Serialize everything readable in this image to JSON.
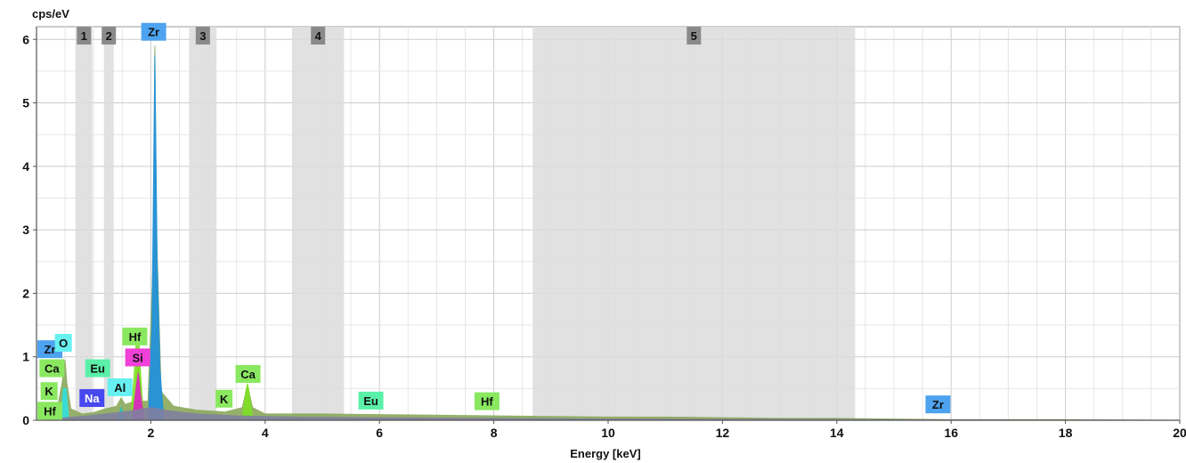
{
  "chart_data": {
    "type": "area",
    "ylabel": "cps/eV",
    "xlabel": "Energy [keV]",
    "xlim": [
      0,
      20
    ],
    "ylim": [
      0,
      6.2
    ],
    "x_ticks": [
      2,
      4,
      6,
      8,
      10,
      12,
      14,
      16,
      18,
      20
    ],
    "x_tick_labels": [
      "2",
      "4",
      "6",
      "8",
      "10",
      "12",
      "14",
      "16",
      "18",
      "20"
    ],
    "y_ticks": [
      0,
      1,
      2,
      3,
      4,
      5,
      6
    ],
    "y_tick_labels": [
      "0",
      "1",
      "2",
      "3",
      "4",
      "5",
      "6"
    ],
    "grid": true,
    "regions": [
      {
        "label": "1",
        "from": 0.68,
        "to": 0.98
      },
      {
        "label": "2",
        "from": 1.18,
        "to": 1.35
      },
      {
        "label": "3",
        "from": 2.67,
        "to": 3.15
      },
      {
        "label": "4",
        "from": 4.47,
        "to": 5.38
      },
      {
        "label": "5",
        "from": 8.68,
        "to": 14.32
      }
    ],
    "series": [
      {
        "color": "#8aa85a",
        "points": [
          [
            0.1,
            0.04
          ],
          [
            0.35,
            0.12
          ],
          [
            0.45,
            0.6
          ],
          [
            0.5,
            0.95
          ],
          [
            0.53,
            0.6
          ],
          [
            0.6,
            0.18
          ],
          [
            0.8,
            0.1
          ],
          [
            1.0,
            0.12
          ],
          [
            1.2,
            0.18
          ],
          [
            1.4,
            0.22
          ],
          [
            1.48,
            0.35
          ],
          [
            1.55,
            0.25
          ],
          [
            1.72,
            0.3
          ],
          [
            1.78,
            1.05
          ],
          [
            1.84,
            0.3
          ],
          [
            1.95,
            0.3
          ],
          [
            2.04,
            2.5
          ],
          [
            2.07,
            5.9
          ],
          [
            2.1,
            3.0
          ],
          [
            2.18,
            0.45
          ],
          [
            2.4,
            0.22
          ],
          [
            2.8,
            0.16
          ],
          [
            3.3,
            0.13
          ],
          [
            3.6,
            0.2
          ],
          [
            3.69,
            0.55
          ],
          [
            3.78,
            0.2
          ],
          [
            4.0,
            0.1
          ],
          [
            5.0,
            0.1
          ],
          [
            6.0,
            0.09
          ],
          [
            7.0,
            0.08
          ],
          [
            8.0,
            0.07
          ],
          [
            9.0,
            0.06
          ],
          [
            10.0,
            0.05
          ],
          [
            11.0,
            0.05
          ],
          [
            12.0,
            0.04
          ],
          [
            13.0,
            0.03
          ],
          [
            14.0,
            0.03
          ],
          [
            15.0,
            0.02
          ],
          [
            16.0,
            0.01
          ],
          [
            18.0,
            0.01
          ],
          [
            20.0,
            0.0
          ]
        ]
      },
      {
        "color": "#1e90e0",
        "points": [
          [
            1.96,
            0.1
          ],
          [
            2.02,
            1.5
          ],
          [
            2.07,
            5.75
          ],
          [
            2.11,
            2.5
          ],
          [
            2.16,
            0.8
          ],
          [
            2.22,
            0.1
          ]
        ]
      },
      {
        "color": "#7fe024",
        "points": [
          [
            1.66,
            0.2
          ],
          [
            1.7,
            0.6
          ],
          [
            1.74,
            1.2
          ],
          [
            1.78,
            1.45
          ],
          [
            1.82,
            0.8
          ],
          [
            1.86,
            0.2
          ]
        ]
      },
      {
        "color": "#e020c8",
        "points": [
          [
            1.68,
            0.05
          ],
          [
            1.74,
            0.5
          ],
          [
            1.78,
            0.75
          ],
          [
            1.82,
            0.4
          ],
          [
            1.88,
            0.05
          ]
        ]
      },
      {
        "color": "#30e0e0",
        "points": [
          [
            0.42,
            0.05
          ],
          [
            0.47,
            0.5
          ],
          [
            0.52,
            0.5
          ],
          [
            0.56,
            0.05
          ]
        ]
      },
      {
        "color": "#20c8c8",
        "points": [
          [
            1.42,
            0.02
          ],
          [
            1.48,
            0.2
          ],
          [
            1.54,
            0.02
          ]
        ]
      },
      {
        "color": "#7fe024",
        "points": [
          [
            3.6,
            0.05
          ],
          [
            3.66,
            0.45
          ],
          [
            3.69,
            0.58
          ],
          [
            3.72,
            0.45
          ],
          [
            3.78,
            0.05
          ]
        ]
      },
      {
        "color": "#8080a0",
        "points": [
          [
            0.2,
            0.02
          ],
          [
            0.8,
            0.06
          ],
          [
            1.2,
            0.1
          ],
          [
            1.6,
            0.14
          ],
          [
            2.0,
            0.2
          ],
          [
            2.3,
            0.15
          ],
          [
            2.8,
            0.1
          ],
          [
            3.5,
            0.07
          ],
          [
            4.5,
            0.05
          ],
          [
            6.0,
            0.04
          ],
          [
            8.0,
            0.03
          ],
          [
            10.0,
            0.02
          ],
          [
            14.0,
            0.01
          ],
          [
            20.0,
            0.0
          ]
        ]
      }
    ],
    "element_labels": [
      {
        "text": "Zr",
        "x": 2.05,
        "y": 6.12,
        "color": "#4da3f0"
      },
      {
        "text": "Zr",
        "x": 0.16,
        "y": 1.12,
        "color": "#4da3f0"
      },
      {
        "text": "O",
        "x": 0.47,
        "y": 1.22,
        "color": "#66f0f0"
      },
      {
        "text": "Ca",
        "x": 0.27,
        "y": 0.82,
        "color": "#8ae860"
      },
      {
        "text": "K",
        "x": 0.22,
        "y": 0.46,
        "color": "#8ae860"
      },
      {
        "text": "Hf",
        "x": 0.2,
        "y": 0.15,
        "color": "#8ae860"
      },
      {
        "text": "Eu",
        "x": 1.07,
        "y": 0.82,
        "color": "#5af0a8"
      },
      {
        "text": "Na",
        "x": 0.97,
        "y": 0.35,
        "color": "#4848f0"
      },
      {
        "text": "Al",
        "x": 1.46,
        "y": 0.52,
        "color": "#66f0f0"
      },
      {
        "text": "Hf",
        "x": 1.72,
        "y": 1.32,
        "color": "#8ae860"
      },
      {
        "text": "Si",
        "x": 1.77,
        "y": 0.99,
        "color": "#f040d8"
      },
      {
        "text": "K",
        "x": 3.28,
        "y": 0.34,
        "color": "#8ae860"
      },
      {
        "text": "Ca",
        "x": 3.7,
        "y": 0.73,
        "color": "#8ae860"
      },
      {
        "text": "Eu",
        "x": 5.85,
        "y": 0.31,
        "color": "#5af0a8"
      },
      {
        "text": "Hf",
        "x": 7.88,
        "y": 0.3,
        "color": "#8ae860"
      },
      {
        "text": "Zr",
        "x": 15.77,
        "y": 0.25,
        "color": "#4da3f0"
      }
    ]
  }
}
